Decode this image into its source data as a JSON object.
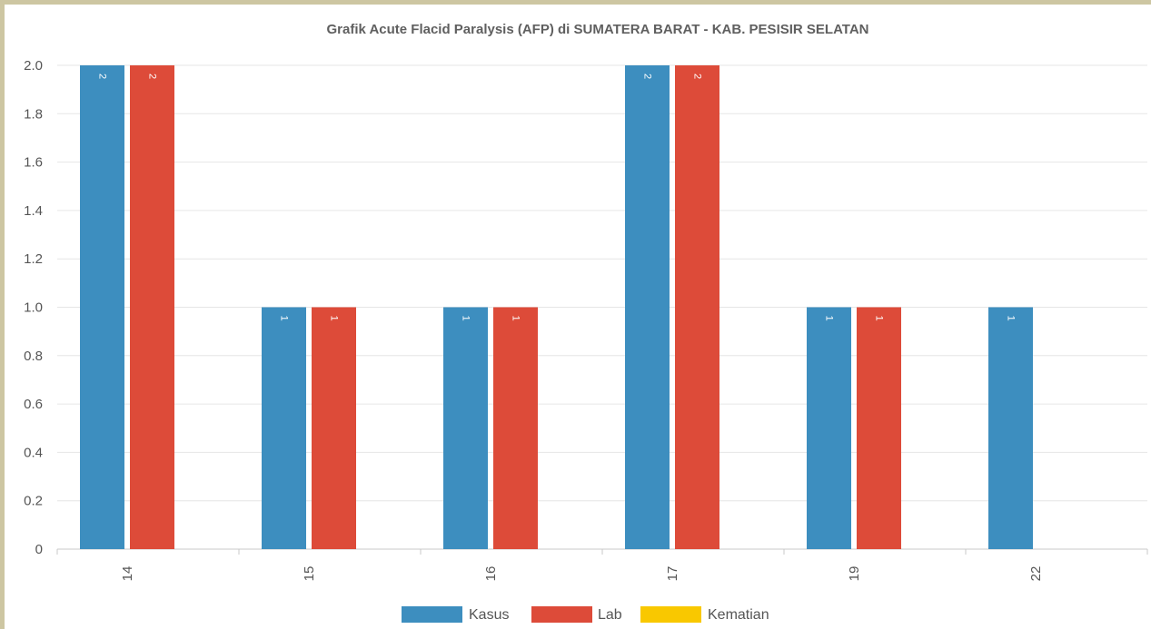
{
  "chart_data": {
    "type": "bar",
    "title": "Grafik Acute Flacid Paralysis (AFP) di SUMATERA BARAT - KAB. PESISIR SELATAN",
    "categories": [
      "14",
      "15",
      "16",
      "17",
      "19",
      "22"
    ],
    "series": [
      {
        "name": "Kasus",
        "color": "#3d8ebf",
        "values": [
          2,
          1,
          1,
          2,
          1,
          1
        ],
        "labels": [
          "2",
          "1",
          "1",
          "2",
          "1",
          "1"
        ]
      },
      {
        "name": "Lab",
        "color": "#dd4b39",
        "values": [
          2,
          1,
          1,
          2,
          1,
          0
        ],
        "labels": [
          "2",
          "1",
          "1",
          "2",
          "1",
          ""
        ]
      },
      {
        "name": "Kematian",
        "color": "#f9c800",
        "values": [
          0,
          0,
          0,
          0,
          0,
          0
        ],
        "labels": [
          "",
          "",
          "",
          "",
          "",
          ""
        ]
      }
    ],
    "yticks": [
      "0",
      "0.2",
      "0.4",
      "0.6",
      "0.8",
      "1.0",
      "1.2",
      "1.4",
      "1.6",
      "1.8",
      "2.0"
    ],
    "ylim": [
      0,
      2
    ],
    "grid": true,
    "legend_position": "bottom-center",
    "x_tick_rotation": "vertical"
  }
}
